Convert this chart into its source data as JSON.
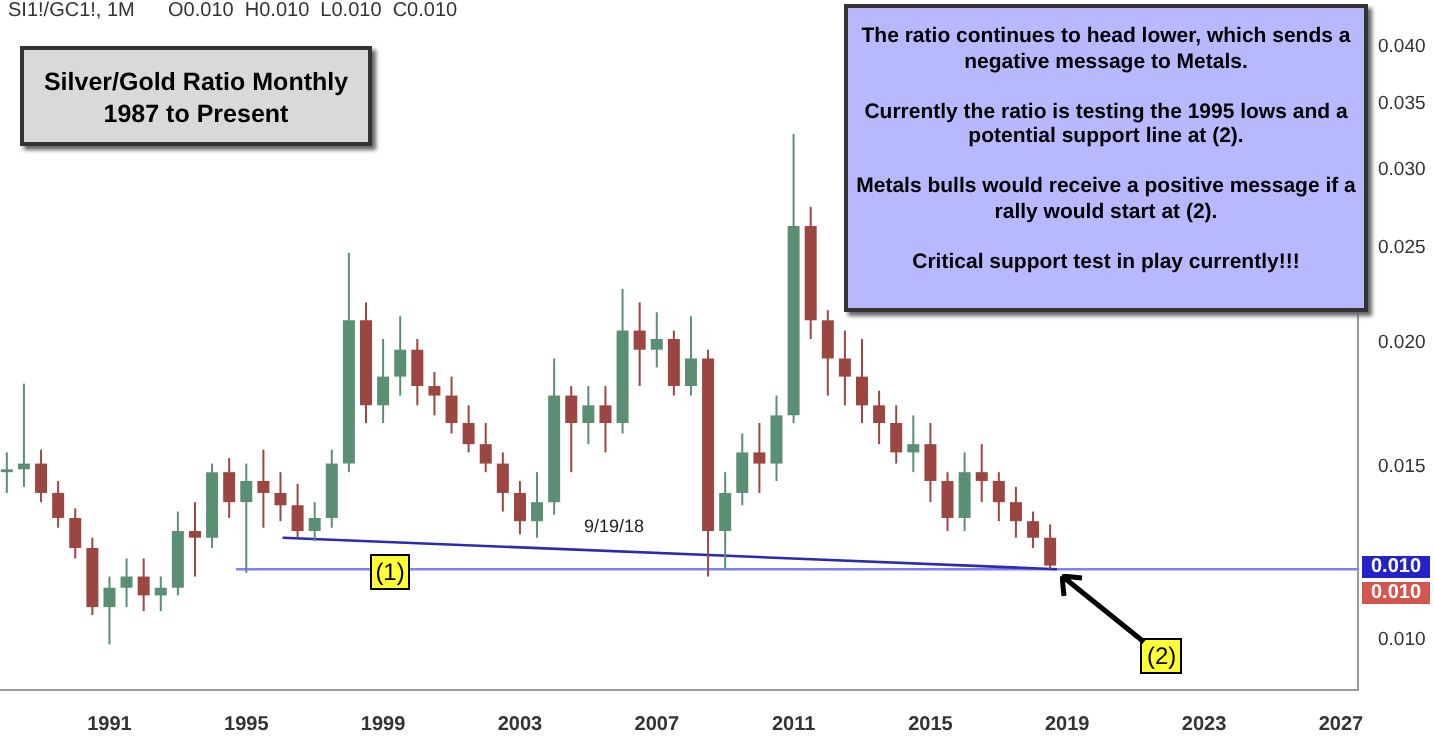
{
  "chart_data": {
    "type": "candlestick",
    "title": "Silver/Gold Ratio Monthly",
    "subtitle": "1987 to Present",
    "log": "y",
    "legend": false,
    "xlim": [
      1987.8,
      2027.5
    ],
    "xticks": [
      1991,
      1995,
      1999,
      2003,
      2007,
      2011,
      2015,
      2019,
      2023,
      2027
    ],
    "ylim": [
      0.0089,
      0.043
    ],
    "yticks": [
      {
        "value": 0.01,
        "label": "0.010"
      },
      {
        "value": 0.015,
        "label": "0.015"
      },
      {
        "value": 0.02,
        "label": "0.020"
      },
      {
        "value": 0.025,
        "label": "0.025"
      },
      {
        "value": 0.03,
        "label": "0.030"
      },
      {
        "value": 0.035,
        "label": "0.035"
      },
      {
        "value": 0.04,
        "label": "0.040"
      }
    ],
    "series": [
      {
        "type": "candlestick",
        "x": [
          1988,
          1988.5,
          1989,
          1989.5,
          1990,
          1990.5,
          1991,
          1991.5,
          1992,
          1992.5,
          1993,
          1993.5,
          1994,
          1994.5,
          1995,
          1995.5,
          1996,
          1996.5,
          1997,
          1997.5,
          1998,
          1998.5,
          1999,
          1999.5,
          2000,
          2000.5,
          2001,
          2001.5,
          2002,
          2002.5,
          2003,
          2003.5,
          2004,
          2004.5,
          2005,
          2005.5,
          2006,
          2006.5,
          2007,
          2007.5,
          2008,
          2008.5,
          2009,
          2009.5,
          2010,
          2010.5,
          2011,
          2011.5,
          2012,
          2012.5,
          2013,
          2013.5,
          2014,
          2014.5,
          2015,
          2015.5,
          2016,
          2016.5,
          2017,
          2017.5,
          2018,
          2018.5
        ],
        "ohlc": [
          [
            0.0148,
            0.0155,
            0.0141,
            0.0149
          ],
          [
            0.0149,
            0.0182,
            0.0143,
            0.0151
          ],
          [
            0.0151,
            0.0156,
            0.0138,
            0.0141
          ],
          [
            0.0141,
            0.0145,
            0.013,
            0.0133
          ],
          [
            0.0133,
            0.0136,
            0.0121,
            0.0124
          ],
          [
            0.0124,
            0.0127,
            0.0106,
            0.0108
          ],
          [
            0.0108,
            0.0116,
            0.0099,
            0.0113
          ],
          [
            0.0113,
            0.0121,
            0.0108,
            0.0116
          ],
          [
            0.0116,
            0.0121,
            0.0107,
            0.0111
          ],
          [
            0.0111,
            0.0116,
            0.0107,
            0.0113
          ],
          [
            0.0113,
            0.0135,
            0.0111,
            0.0129
          ],
          [
            0.0129,
            0.0138,
            0.0116,
            0.0127
          ],
          [
            0.0127,
            0.0151,
            0.0124,
            0.0148
          ],
          [
            0.0148,
            0.0153,
            0.0133,
            0.0138
          ],
          [
            0.0138,
            0.0151,
            0.0117,
            0.0145
          ],
          [
            0.0145,
            0.0156,
            0.013,
            0.0141
          ],
          [
            0.0141,
            0.0148,
            0.0132,
            0.0137
          ],
          [
            0.0137,
            0.0144,
            0.0127,
            0.0129
          ],
          [
            0.0129,
            0.0138,
            0.0126,
            0.0133
          ],
          [
            0.0133,
            0.0156,
            0.013,
            0.0151
          ],
          [
            0.0151,
            0.0247,
            0.0148,
            0.0211
          ],
          [
            0.0211,
            0.022,
            0.0166,
            0.0173
          ],
          [
            0.0173,
            0.0202,
            0.0166,
            0.0185
          ],
          [
            0.0185,
            0.0213,
            0.0177,
            0.0197
          ],
          [
            0.0197,
            0.0202,
            0.0173,
            0.0181
          ],
          [
            0.0181,
            0.0187,
            0.0169,
            0.0177
          ],
          [
            0.0177,
            0.0185,
            0.0162,
            0.0166
          ],
          [
            0.0166,
            0.0173,
            0.0155,
            0.0158
          ],
          [
            0.0158,
            0.0166,
            0.0148,
            0.0151
          ],
          [
            0.0151,
            0.0155,
            0.0135,
            0.0141
          ],
          [
            0.0141,
            0.0145,
            0.0128,
            0.0132
          ],
          [
            0.0132,
            0.0148,
            0.0127,
            0.0138
          ],
          [
            0.0138,
            0.0193,
            0.0134,
            0.0177
          ],
          [
            0.0177,
            0.0181,
            0.0148,
            0.0166
          ],
          [
            0.0166,
            0.0181,
            0.0158,
            0.0173
          ],
          [
            0.0173,
            0.0181,
            0.0155,
            0.0166
          ],
          [
            0.0166,
            0.0227,
            0.0162,
            0.0206
          ],
          [
            0.0206,
            0.022,
            0.0181,
            0.0197
          ],
          [
            0.0197,
            0.0215,
            0.0189,
            0.0202
          ],
          [
            0.0202,
            0.0206,
            0.0177,
            0.0181
          ],
          [
            0.0181,
            0.0213,
            0.0177,
            0.0193
          ],
          [
            0.0193,
            0.0197,
            0.0116,
            0.0129
          ],
          [
            0.0129,
            0.0148,
            0.0118,
            0.0141
          ],
          [
            0.0141,
            0.0162,
            0.0137,
            0.0155
          ],
          [
            0.0155,
            0.0166,
            0.0141,
            0.0151
          ],
          [
            0.0151,
            0.0177,
            0.0145,
            0.0169
          ],
          [
            0.0169,
            0.0326,
            0.0166,
            0.0263
          ],
          [
            0.0263,
            0.0275,
            0.0202,
            0.0211
          ],
          [
            0.0211,
            0.0216,
            0.0177,
            0.0193
          ],
          [
            0.0193,
            0.0206,
            0.0173,
            0.0185
          ],
          [
            0.0185,
            0.0202,
            0.0166,
            0.0173
          ],
          [
            0.0173,
            0.0179,
            0.0158,
            0.0166
          ],
          [
            0.0166,
            0.0173,
            0.0151,
            0.0155
          ],
          [
            0.0155,
            0.0169,
            0.0148,
            0.0158
          ],
          [
            0.0158,
            0.0166,
            0.0138,
            0.0145
          ],
          [
            0.0145,
            0.0148,
            0.0129,
            0.0133
          ],
          [
            0.0133,
            0.0155,
            0.0129,
            0.0148
          ],
          [
            0.0148,
            0.0158,
            0.0138,
            0.0145
          ],
          [
            0.0145,
            0.0148,
            0.0132,
            0.0138
          ],
          [
            0.0138,
            0.0143,
            0.0127,
            0.0132
          ],
          [
            0.0132,
            0.0135,
            0.0124,
            0.0127
          ],
          [
            0.0127,
            0.0131,
            0.0118,
            0.0119
          ]
        ],
        "colors": [
          "#5a8f74",
          "#5a8f74",
          "#9b4640",
          "#9b4640",
          "#9b4640",
          "#9b4640",
          "#5a8f74",
          "#5a8f74",
          "#9b4640",
          "#5a8f74",
          "#5a8f74",
          "#9b4640",
          "#5a8f74",
          "#9b4640",
          "#5a8f74",
          "#9b4640",
          "#9b4640",
          "#9b4640",
          "#5a8f74",
          "#5a8f74",
          "#5a8f74",
          "#9b4640",
          "#5a8f74",
          "#5a8f74",
          "#9b4640",
          "#9b4640",
          "#9b4640",
          "#9b4640",
          "#9b4640",
          "#9b4640",
          "#9b4640",
          "#5a8f74",
          "#5a8f74",
          "#9b4640",
          "#5a8f74",
          "#9b4640",
          "#5a8f74",
          "#9b4640",
          "#5a8f74",
          "#9b4640",
          "#5a8f74",
          "#9b4640",
          "#5a8f74",
          "#5a8f74",
          "#9b4640",
          "#5a8f74",
          "#5a8f74",
          "#9b4640",
          "#9b4640",
          "#9b4640",
          "#9b4640",
          "#9b4640",
          "#9b4640",
          "#5a8f74",
          "#9b4640",
          "#9b4640",
          "#5a8f74",
          "#9b4640",
          "#9b4640",
          "#9b4640",
          "#9b4640",
          "#9b4640"
        ]
      },
      {
        "type": "line",
        "x": [
          1996.06,
          2018.7
        ],
        "values": [
          0.0127,
          0.0118
        ],
        "color": "#2a2ab5"
      },
      {
        "type": "line",
        "x": [
          1994.7,
          2027.5
        ],
        "values": [
          0.0118,
          0.0118
        ],
        "color": "#8080ff"
      }
    ],
    "annotations": [
      "SI1!/GC1!, 1M      O0.010  H0.010  L0.010  C0.010",
      "The ratio continues to head lower, which sends a negative message to Metals.\n\nCurrently the ratio is testing the 1995 lows and a potential support line at (2).\n\nMetals bulls would receive a positive message if a rally would start at (2).\n\nCritical support test in play currently!!!",
      "9/19/18",
      {
        "text": "(1)",
        "x": 1999.3,
        "y": 0.0118
      },
      {
        "text": "(2)",
        "x": 2018.7,
        "y": 0.0118
      },
      {
        "text": "0.010",
        "y": 0.0118
      },
      "0.010"
    ]
  }
}
